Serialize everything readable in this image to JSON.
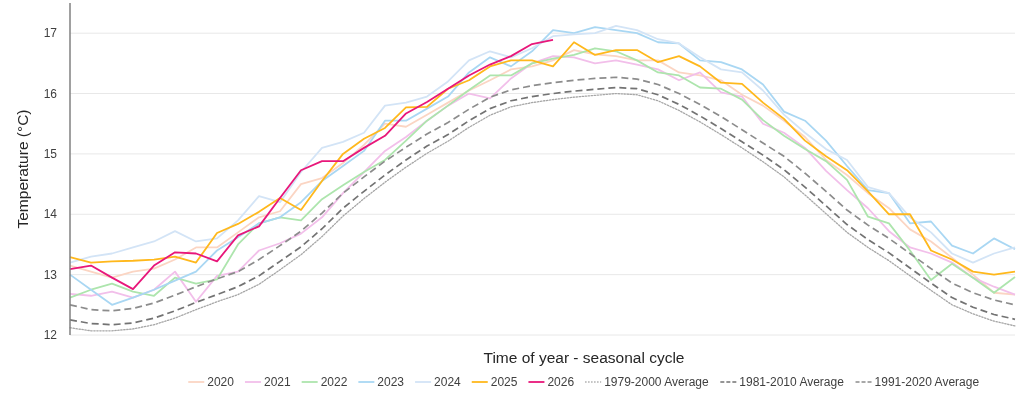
{
  "chart_data": {
    "type": "line",
    "xlabel": "Time of year - seasonal cycle",
    "ylabel": "Temperature (°C)",
    "categories": [
      null,
      null,
      null,
      null,
      null,
      null,
      null,
      null,
      null,
      null,
      null,
      null,
      null,
      null,
      null,
      null,
      null,
      null,
      null,
      null,
      null,
      null,
      null,
      null,
      null,
      null,
      null,
      null,
      null,
      null,
      null,
      null,
      null,
      null,
      null,
      null,
      null,
      null,
      null,
      null,
      null,
      null,
      null,
      null,
      null,
      null
    ],
    "ylim": [
      12,
      17.5
    ],
    "yticks": [
      12,
      13,
      14,
      15,
      16,
      17
    ],
    "grid": "y",
    "legend": "bottom",
    "tick_labels": "y",
    "line_style": "solid",
    "series": [
      {
        "name": "2020",
        "color": "#fbd5c3",
        "values": [
          13.15,
          13.05,
          12.95,
          13.05,
          13.1,
          13.25,
          13.45,
          13.45,
          13.7,
          13.95,
          14.05,
          14.5,
          14.6,
          14.85,
          15.15,
          15.5,
          15.45,
          15.65,
          15.85,
          16.05,
          16.22,
          16.4,
          16.45,
          16.55,
          16.72,
          16.65,
          16.62,
          16.55,
          16.55,
          16.35,
          16.3,
          16.22,
          15.98,
          15.8,
          15.55,
          15.28,
          14.9,
          14.65,
          14.35,
          14.1,
          13.75,
          13.55,
          13.28,
          13.0,
          12.7,
          12.67
        ]
      },
      {
        "name": "2021",
        "color": "#f2bfea",
        "values": [
          12.68,
          12.65,
          12.72,
          12.62,
          12.75,
          13.05,
          12.55,
          12.98,
          13.05,
          13.4,
          13.52,
          13.68,
          13.95,
          14.35,
          14.7,
          15.05,
          15.28,
          15.55,
          15.8,
          16.0,
          15.92,
          16.25,
          16.5,
          16.62,
          16.6,
          16.5,
          16.55,
          16.48,
          16.4,
          16.22,
          16.35,
          16.02,
          15.95,
          15.5,
          15.35,
          15.1,
          14.72,
          14.4,
          14.1,
          13.72,
          13.45,
          13.35,
          13.2,
          12.95,
          12.8,
          12.67
        ]
      },
      {
        "name": "2022",
        "color": "#ade5ad",
        "values": [
          12.62,
          12.75,
          12.85,
          12.72,
          12.65,
          12.95,
          12.85,
          12.92,
          13.5,
          13.85,
          13.95,
          13.9,
          14.25,
          14.48,
          14.7,
          14.9,
          15.22,
          15.55,
          15.8,
          16.06,
          16.3,
          16.3,
          16.5,
          16.58,
          16.64,
          16.75,
          16.7,
          16.55,
          16.35,
          16.3,
          16.1,
          16.08,
          15.9,
          15.56,
          15.3,
          15.08,
          14.88,
          14.57,
          13.96,
          13.85,
          13.4,
          12.91,
          13.18,
          12.95,
          12.7,
          12.96
        ]
      },
      {
        "name": "2023",
        "color": "#a9d7f3",
        "values": [
          13.0,
          12.75,
          12.5,
          12.62,
          12.75,
          12.9,
          13.05,
          13.4,
          13.62,
          13.85,
          13.95,
          14.2,
          14.55,
          14.8,
          15.05,
          15.55,
          15.55,
          15.75,
          15.95,
          16.35,
          16.6,
          16.45,
          16.7,
          17.05,
          17.0,
          17.1,
          17.05,
          17.0,
          16.85,
          16.83,
          16.55,
          16.52,
          16.4,
          16.15,
          15.7,
          15.55,
          15.22,
          14.8,
          14.4,
          14.35,
          13.85,
          13.88,
          13.48,
          13.35,
          13.6,
          13.42
        ]
      },
      {
        "name": "2024",
        "color": "#d3e4f6",
        "values": [
          13.2,
          13.3,
          13.35,
          13.45,
          13.55,
          13.72,
          13.55,
          13.6,
          13.9,
          14.3,
          14.2,
          14.7,
          15.1,
          15.2,
          15.35,
          15.8,
          15.85,
          15.95,
          16.2,
          16.55,
          16.7,
          16.6,
          16.75,
          16.95,
          16.98,
          17.0,
          17.12,
          17.05,
          16.9,
          16.83,
          16.6,
          16.4,
          16.35,
          16.05,
          15.65,
          15.35,
          15.08,
          14.9,
          14.45,
          14.35,
          13.95,
          13.7,
          13.35,
          13.2,
          13.35,
          13.45
        ]
      },
      {
        "name": "2025",
        "color": "#ffb81c",
        "values": [
          13.29,
          13.2,
          13.22,
          13.23,
          13.25,
          13.3,
          13.2,
          13.69,
          13.84,
          14.04,
          14.27,
          14.07,
          14.55,
          15.0,
          15.25,
          15.43,
          15.77,
          15.78,
          16.08,
          16.22,
          16.45,
          16.55,
          16.55,
          16.45,
          16.85,
          16.64,
          16.72,
          16.72,
          16.52,
          16.62,
          16.45,
          16.18,
          16.16,
          15.85,
          15.58,
          15.22,
          14.96,
          14.73,
          14.38,
          14.0,
          14.0,
          13.4,
          13.25,
          13.05,
          13.0,
          13.05
        ]
      },
      {
        "name": "2026",
        "color": "#e8177a",
        "values": [
          13.09,
          13.15,
          12.95,
          12.76,
          13.15,
          13.37,
          13.35,
          13.22,
          13.65,
          13.8,
          14.27,
          14.73,
          14.88,
          14.88,
          15.1,
          15.3,
          15.67,
          15.86,
          16.08,
          16.3,
          16.48,
          16.62,
          16.82,
          16.89,
          null,
          null,
          null,
          null,
          null,
          null,
          null,
          null,
          null,
          null,
          null,
          null,
          null,
          null,
          null,
          null,
          null,
          null,
          null,
          null,
          null,
          null
        ]
      },
      {
        "name": "1979-2000 Average",
        "color": "#a6a6a6",
        "line_style": "dotted",
        "values": [
          12.12,
          12.07,
          12.07,
          12.1,
          12.17,
          12.28,
          12.42,
          12.55,
          12.67,
          12.84,
          13.08,
          13.33,
          13.63,
          13.97,
          14.26,
          14.53,
          14.78,
          15.01,
          15.21,
          15.44,
          15.64,
          15.78,
          15.85,
          15.9,
          15.94,
          15.97,
          16.0,
          15.98,
          15.88,
          15.72,
          15.53,
          15.32,
          15.1,
          14.87,
          14.62,
          14.32,
          14.01,
          13.7,
          13.45,
          13.23,
          12.98,
          12.74,
          12.5,
          12.35,
          12.23,
          12.15
        ]
      },
      {
        "name": "1981-2010 Average",
        "color": "#737373",
        "line_style": "dashed",
        "values": [
          12.25,
          12.19,
          12.17,
          12.2,
          12.28,
          12.4,
          12.54,
          12.67,
          12.8,
          12.98,
          13.22,
          13.46,
          13.76,
          14.1,
          14.38,
          14.65,
          14.9,
          15.13,
          15.32,
          15.55,
          15.75,
          15.88,
          15.95,
          16.0,
          16.04,
          16.07,
          16.1,
          16.08,
          15.98,
          15.82,
          15.63,
          15.42,
          15.2,
          14.98,
          14.74,
          14.45,
          14.14,
          13.83,
          13.58,
          13.36,
          13.11,
          12.86,
          12.62,
          12.46,
          12.34,
          12.26
        ]
      },
      {
        "name": "1991-2020 Average",
        "color": "#8c8c8c",
        "line_style": "dashed",
        "values": [
          12.5,
          12.42,
          12.4,
          12.44,
          12.53,
          12.66,
          12.8,
          12.93,
          13.05,
          13.25,
          13.48,
          13.72,
          14.02,
          14.35,
          14.62,
          14.88,
          15.11,
          15.33,
          15.52,
          15.74,
          15.94,
          16.06,
          16.13,
          16.18,
          16.22,
          16.25,
          16.27,
          16.24,
          16.15,
          16.0,
          15.82,
          15.62,
          15.4,
          15.18,
          14.96,
          14.68,
          14.38,
          14.07,
          13.82,
          13.6,
          13.35,
          13.1,
          12.86,
          12.7,
          12.58,
          12.5
        ]
      }
    ]
  }
}
